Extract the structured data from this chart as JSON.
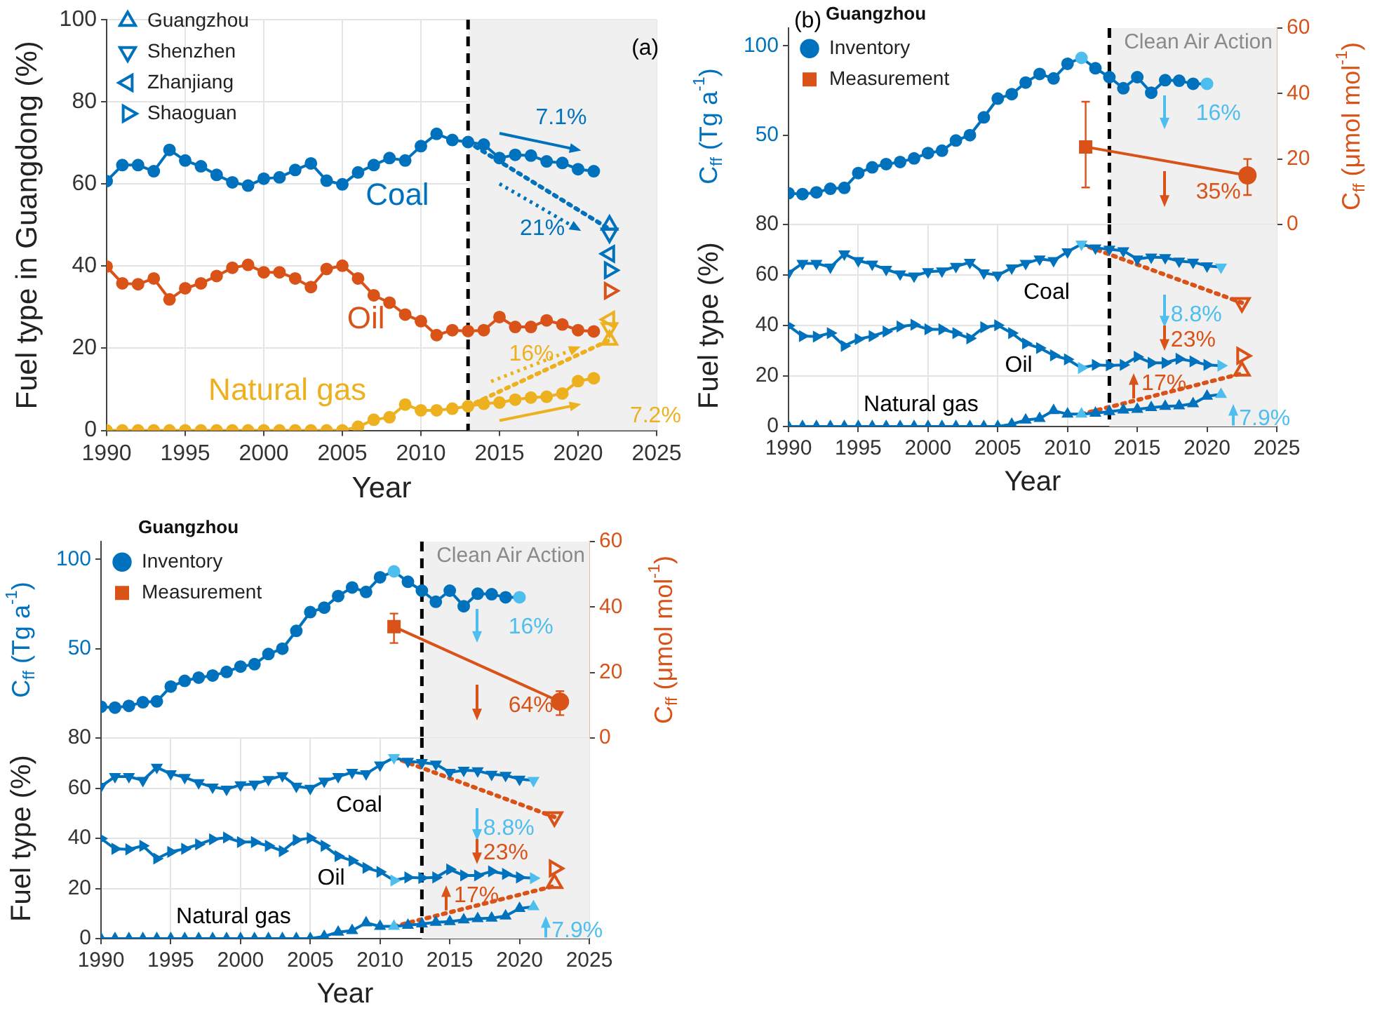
{
  "chart_data": [
    {
      "type": "line",
      "xlabel": "Year",
      "ylabel": "Fuel type in Guangdong (%)",
      "x": [
        1990,
        1991,
        1992,
        1993,
        1994,
        1995,
        1996,
        1997,
        1998,
        1999,
        2000,
        2001,
        2002,
        2003,
        2004,
        2005,
        2006,
        2007,
        2008,
        2009,
        2010,
        2011,
        2012,
        2013,
        2014,
        2015,
        2016,
        2017,
        2018,
        2019,
        2020,
        2021
      ],
      "xlim": [
        1990,
        2025
      ],
      "xticks": [
        1990,
        1995,
        2000,
        2005,
        2010,
        2015,
        2020,
        2025
      ],
      "ylim": [
        0,
        100
      ],
      "yticks": [
        0,
        20,
        40,
        60,
        80,
        100
      ],
      "grid": true,
      "legend": "top left",
      "marker": "circle",
      "series": [
        {
          "name": "Coal",
          "color": "#0072bd",
          "values": [
            60.7,
            64.6,
            64.6,
            63.1,
            68.3,
            65.7,
            64.3,
            62.2,
            60.4,
            59.6,
            61.3,
            61.6,
            63.4,
            65,
            60.8,
            59.9,
            62.8,
            64.6,
            66.3,
            65.7,
            69.2,
            72.2,
            70.7,
            70.2,
            69.6,
            66.3,
            67.1,
            66.9,
            65.5,
            65.1,
            63.6,
            63.1
          ]
        },
        {
          "name": "Oil",
          "color": "#d95319",
          "values": [
            39.9,
            35.8,
            35.6,
            37,
            31.9,
            34.6,
            35.8,
            37.6,
            39.6,
            40.3,
            38.5,
            38.5,
            37,
            34.9,
            39.3,
            40.1,
            37,
            32.9,
            31.1,
            28.2,
            26.6,
            23.2,
            24.4,
            24.2,
            24.4,
            27.6,
            25.2,
            25.2,
            26.8,
            25.8,
            24.4,
            24.1
          ]
        },
        {
          "name": "Natural gas",
          "color": "#edb120",
          "values": [
            0,
            0,
            0,
            0,
            0,
            0,
            0,
            0,
            0,
            0,
            0,
            0,
            0,
            0,
            0,
            0,
            0.9,
            2.6,
            3.2,
            6.3,
            4.9,
            4.9,
            5.3,
            5.9,
            6.5,
            6.8,
            7.5,
            8,
            8.2,
            9,
            12,
            12.7
          ]
        },
        {
          "type": "line",
          "color": "#0072bd",
          "line_style": "dotted",
          "marker": "none",
          "x": [
            2013,
            2022
          ],
          "values": [
            70.2,
            49
          ]
        },
        {
          "type": "line",
          "color": "#edb120",
          "line_style": "dotted",
          "marker": "none",
          "x": [
            2013,
            2022
          ],
          "values": [
            5.9,
            22
          ]
        },
        {
          "type": "scatter",
          "name": "Guangzhou",
          "marker": "triangle",
          "x": [
            2022,
            2022
          ],
          "values": [
            50,
            22
          ],
          "colors": [
            "#0072bd",
            "#edb120"
          ]
        },
        {
          "type": "scatter",
          "name": "Shenzhen",
          "marker": "triangle-down",
          "x": [
            2022,
            2022
          ],
          "values": [
            48,
            25
          ],
          "colors": [
            "#0072bd",
            "#edb120"
          ]
        },
        {
          "type": "scatter",
          "name": "Zhanjiang",
          "marker": "triangle-left",
          "x": [
            2022,
            2022
          ],
          "values": [
            43,
            27
          ],
          "colors": [
            "#0072bd",
            "#edb120"
          ]
        },
        {
          "type": "scatter",
          "name": "Shaoguan",
          "marker": "triangle-right",
          "x": [
            2022,
            2022
          ],
          "values": [
            39,
            34
          ],
          "colors": [
            "#0072bd",
            "#d95319"
          ]
        }
      ],
      "bands": [
        {
          "axis": "x",
          "from": 2013,
          "to": 2025,
          "color": "#f0f0f0"
        }
      ],
      "ref_lines": [
        {
          "axis": "x",
          "value": 2013,
          "color": "#000000",
          "line_style": "dashed"
        }
      ],
      "annotations": [
        "(a)",
        "7.1%",
        "21%",
        "16%",
        "7.2%"
      ]
    },
    {
      "type": "line",
      "ylabel": "C$_{ff}$ (Tg a$^{-1}$)",
      "y2label": "C$_{ff}$ (μmol mol$^{-1}$)",
      "legend_title": "Guangzhou",
      "legend": "top left",
      "tick_labels": "y",
      "xlim": [
        1990,
        2025
      ],
      "xticks": [
        1990,
        1995,
        2000,
        2005,
        2010,
        2015,
        2020,
        2025
      ],
      "ylim": [
        0,
        110
      ],
      "yticks": [
        {
          "value": 0,
          "label": null
        },
        50,
        100
      ],
      "y2lim": [
        0,
        60
      ],
      "y2ticks": [
        0,
        20,
        40,
        60
      ],
      "marker": "circle",
      "series": [
        {
          "name": "Inventory",
          "color": "#0072bd",
          "x": [
            1990,
            1991,
            1992,
            1993,
            1994,
            1995,
            1996,
            1997,
            1998,
            1999,
            2000,
            2001,
            2002,
            2003,
            2004,
            2005,
            2006,
            2007,
            2008,
            2009,
            2010,
            2011,
            2012,
            2013,
            2014,
            2015,
            2016,
            2017,
            2018,
            2019,
            2020
          ],
          "values": [
            17.5,
            17,
            18,
            20,
            20.5,
            28.8,
            32,
            33.8,
            35,
            37,
            40,
            41.3,
            47,
            50,
            60,
            70.5,
            73,
            79.5,
            84.3,
            81.8,
            90,
            93.3,
            87.5,
            82.5,
            76.3,
            82.5,
            73.8,
            80.8,
            80.5,
            78.8,
            78.8
          ],
          "colors": [
            "#0072bd",
            "#0072bd",
            "#0072bd",
            "#0072bd",
            "#0072bd",
            "#0072bd",
            "#0072bd",
            "#0072bd",
            "#0072bd",
            "#0072bd",
            "#0072bd",
            "#0072bd",
            "#0072bd",
            "#0072bd",
            "#0072bd",
            "#0072bd",
            "#0072bd",
            "#0072bd",
            "#0072bd",
            "#0072bd",
            "#0072bd",
            "#4dbeee",
            "#0072bd",
            "#0072bd",
            "#0072bd",
            "#0072bd",
            "#0072bd",
            "#0072bd",
            "#0072bd",
            "#0072bd",
            "#4dbeee"
          ]
        },
        {
          "name": "Measurement",
          "color": "#d95319",
          "axis": "y2",
          "marker": [
            "square",
            "circle"
          ],
          "x": [
            2011.3,
            2022.9
          ],
          "values": [
            23.7,
            15
          ],
          "errors": [
            [
              11.3,
              37.5
            ],
            [
              9,
              20
            ]
          ]
        }
      ],
      "bands": [
        {
          "axis": "x",
          "from": 2013,
          "to": 2025,
          "color": "#f0f0f0",
          "label": "Clean Air Action"
        }
      ],
      "ref_lines": [
        {
          "axis": "x",
          "value": 2013,
          "color": "#000000",
          "line_style": "dashed"
        }
      ],
      "annotations": [
        "(b)",
        "16%",
        "35%"
      ]
    },
    {
      "type": "line",
      "xlabel": "Year",
      "ylabel": "Fuel type (%)",
      "x": [
        1990,
        1991,
        1992,
        1993,
        1994,
        1995,
        1996,
        1997,
        1998,
        1999,
        2000,
        2001,
        2002,
        2003,
        2004,
        2005,
        2006,
        2007,
        2008,
        2009,
        2010,
        2011,
        2012,
        2013,
        2014,
        2015,
        2016,
        2017,
        2018,
        2019,
        2020,
        2021
      ],
      "xlim": [
        1990,
        2025
      ],
      "xticks": [
        1990,
        1995,
        2000,
        2005,
        2010,
        2015,
        2020,
        2025
      ],
      "ylim": [
        0,
        80
      ],
      "yticks": [
        0,
        20,
        40,
        60,
        80
      ],
      "grid": true,
      "series": [
        {
          "name": "Coal",
          "color": "#0072bd",
          "marker": "triangle-down",
          "values": [
            60.7,
            64.6,
            64.6,
            63.1,
            68.3,
            65.7,
            64.3,
            62.2,
            60.4,
            59.6,
            61.3,
            61.6,
            63.4,
            65,
            60.8,
            59.9,
            62.8,
            64.6,
            66.3,
            65.7,
            69.2,
            72.2,
            70.7,
            70.2,
            69.6,
            66.3,
            67.1,
            66.9,
            65.5,
            65.1,
            63.6,
            63.1
          ],
          "colors": [
            "#0072bd",
            "#0072bd",
            "#0072bd",
            "#0072bd",
            "#0072bd",
            "#0072bd",
            "#0072bd",
            "#0072bd",
            "#0072bd",
            "#0072bd",
            "#0072bd",
            "#0072bd",
            "#0072bd",
            "#0072bd",
            "#0072bd",
            "#0072bd",
            "#0072bd",
            "#0072bd",
            "#0072bd",
            "#0072bd",
            "#0072bd",
            "#4dbeee",
            "#0072bd",
            "#0072bd",
            "#0072bd",
            "#0072bd",
            "#0072bd",
            "#0072bd",
            "#0072bd",
            "#0072bd",
            "#0072bd",
            "#4dbeee"
          ]
        },
        {
          "name": "Oil",
          "color": "#0072bd",
          "marker": "triangle-right",
          "values": [
            39.9,
            35.8,
            35.6,
            37,
            31.9,
            34.6,
            35.8,
            37.6,
            39.6,
            40.3,
            38.5,
            38.5,
            37,
            34.9,
            39.3,
            40.1,
            37,
            32.9,
            31.1,
            28.2,
            26.6,
            23.2,
            24.4,
            24.2,
            24.4,
            27.6,
            25.2,
            25.2,
            26.8,
            25.8,
            24.4,
            24.1
          ],
          "colors": [
            "#0072bd",
            "#0072bd",
            "#0072bd",
            "#0072bd",
            "#0072bd",
            "#0072bd",
            "#0072bd",
            "#0072bd",
            "#0072bd",
            "#0072bd",
            "#0072bd",
            "#0072bd",
            "#0072bd",
            "#0072bd",
            "#0072bd",
            "#0072bd",
            "#0072bd",
            "#0072bd",
            "#0072bd",
            "#0072bd",
            "#0072bd",
            "#4dbeee",
            "#0072bd",
            "#0072bd",
            "#0072bd",
            "#0072bd",
            "#0072bd",
            "#0072bd",
            "#0072bd",
            "#0072bd",
            "#0072bd",
            "#4dbeee"
          ]
        },
        {
          "name": "Natural gas",
          "color": "#0072bd",
          "marker": "triangle",
          "values": [
            0,
            0,
            0,
            0,
            0,
            0,
            0,
            0,
            0,
            0,
            0,
            0,
            0,
            0,
            0,
            0,
            0.9,
            2.6,
            3.2,
            6.3,
            4.9,
            4.9,
            5.3,
            5.9,
            6.5,
            6.8,
            7.5,
            8,
            8.2,
            9,
            12,
            12.7
          ],
          "colors": [
            "#0072bd",
            "#0072bd",
            "#0072bd",
            "#0072bd",
            "#0072bd",
            "#0072bd",
            "#0072bd",
            "#0072bd",
            "#0072bd",
            "#0072bd",
            "#0072bd",
            "#0072bd",
            "#0072bd",
            "#0072bd",
            "#0072bd",
            "#0072bd",
            "#0072bd",
            "#0072bd",
            "#0072bd",
            "#0072bd",
            "#0072bd",
            "#4dbeee",
            "#0072bd",
            "#0072bd",
            "#0072bd",
            "#0072bd",
            "#0072bd",
            "#0072bd",
            "#0072bd",
            "#0072bd",
            "#0072bd",
            "#4dbeee"
          ]
        },
        {
          "type": "line",
          "color": "#d95319",
          "line_style": "dotted",
          "marker": "none",
          "x": [
            2011,
            2022.5
          ],
          "values": [
            72.2,
            49
          ]
        },
        {
          "type": "line",
          "color": "#d95319",
          "line_style": "dotted",
          "marker": "none",
          "x": [
            2011,
            2022.5
          ],
          "values": [
            4.9,
            21
          ]
        },
        {
          "type": "scatter",
          "color": "#d95319",
          "marker": "triangle-down",
          "x": [
            2022.5
          ],
          "values": [
            49
          ]
        },
        {
          "type": "scatter",
          "color": "#d95319",
          "marker": "triangle-right",
          "x": [
            2022.5
          ],
          "values": [
            28
          ]
        },
        {
          "type": "scatter",
          "color": "#d95319",
          "marker": "triangle",
          "x": [
            2022.5
          ],
          "values": [
            22
          ]
        }
      ],
      "bands": [
        {
          "axis": "x",
          "from": 2013,
          "to": 2025,
          "color": "#f0f0f0"
        }
      ],
      "ref_lines": [
        {
          "axis": "x",
          "value": 2013,
          "color": "#000000",
          "line_style": "dashed"
        }
      ],
      "annotations": [
        "8.8%",
        "23%",
        "17%",
        "7.9%"
      ]
    },
    {
      "type": "line",
      "ylabel": "C$_{ff}$ (Tg a$^{-1}$)",
      "y2label": "C$_{ff}$ (μmol mol$^{-1}$)",
      "legend_title": "Guangzhou",
      "legend": "top left",
      "tick_labels": "y",
      "xlim": [
        1990,
        2025
      ],
      "xticks": [
        1990,
        1995,
        2000,
        2005,
        2010,
        2015,
        2020,
        2025
      ],
      "ylim": [
        0,
        110
      ],
      "yticks": [
        {
          "value": 0,
          "label": null
        },
        50,
        100
      ],
      "y2lim": [
        0,
        60
      ],
      "y2ticks": [
        0,
        20,
        40,
        60
      ],
      "marker": "circle",
      "series": [
        {
          "name": "Inventory",
          "color": "#0072bd",
          "x": [
            1990,
            1991,
            1992,
            1993,
            1994,
            1995,
            1996,
            1997,
            1998,
            1999,
            2000,
            2001,
            2002,
            2003,
            2004,
            2005,
            2006,
            2007,
            2008,
            2009,
            2010,
            2011,
            2012,
            2013,
            2014,
            2015,
            2016,
            2017,
            2018,
            2019,
            2020
          ],
          "values": [
            17.5,
            17,
            18,
            20,
            20.5,
            28.8,
            32,
            33.8,
            35,
            37,
            40,
            41.3,
            47,
            50,
            60,
            70.5,
            73,
            79.5,
            84.3,
            81.8,
            90,
            93.3,
            87.5,
            82.5,
            76.3,
            82.5,
            73.8,
            80.8,
            80.5,
            78.8,
            78.8
          ],
          "colors": [
            "#0072bd",
            "#0072bd",
            "#0072bd",
            "#0072bd",
            "#0072bd",
            "#0072bd",
            "#0072bd",
            "#0072bd",
            "#0072bd",
            "#0072bd",
            "#0072bd",
            "#0072bd",
            "#0072bd",
            "#0072bd",
            "#0072bd",
            "#0072bd",
            "#0072bd",
            "#0072bd",
            "#0072bd",
            "#0072bd",
            "#0072bd",
            "#4dbeee",
            "#0072bd",
            "#0072bd",
            "#0072bd",
            "#0072bd",
            "#0072bd",
            "#0072bd",
            "#0072bd",
            "#0072bd",
            "#4dbeee"
          ]
        },
        {
          "name": "Measurement",
          "color": "#d95319",
          "axis": "y2",
          "marker": [
            "square",
            "circle"
          ],
          "x": [
            2011,
            2022.9
          ],
          "values": [
            34,
            11.1
          ],
          "errors": [
            [
              29,
              38
            ],
            [
              7,
              14.3
            ]
          ]
        }
      ],
      "bands": [
        {
          "axis": "x",
          "from": 2013,
          "to": 2025,
          "color": "#f0f0f0",
          "label": "Clean Air Action"
        }
      ],
      "ref_lines": [
        {
          "axis": "x",
          "value": 2013,
          "color": "#000000",
          "line_style": "dashed"
        }
      ],
      "annotations": [
        "16%",
        "64%"
      ]
    },
    {
      "type": "line",
      "xlabel": "Year",
      "ylabel": "Fuel type (%)",
      "x": [
        1990,
        1991,
        1992,
        1993,
        1994,
        1995,
        1996,
        1997,
        1998,
        1999,
        2000,
        2001,
        2002,
        2003,
        2004,
        2005,
        2006,
        2007,
        2008,
        2009,
        2010,
        2011,
        2012,
        2013,
        2014,
        2015,
        2016,
        2017,
        2018,
        2019,
        2020,
        2021
      ],
      "xlim": [
        1990,
        2025
      ],
      "xticks": [
        1990,
        1995,
        2000,
        2005,
        2010,
        2015,
        2020,
        2025
      ],
      "ylim": [
        0,
        80
      ],
      "yticks": [
        0,
        20,
        40,
        60,
        80
      ],
      "grid": true,
      "series": [
        {
          "name": "Coal",
          "color": "#0072bd",
          "marker": "triangle-down",
          "values": [
            60.7,
            64.6,
            64.6,
            63.1,
            68.3,
            65.7,
            64.3,
            62.2,
            60.4,
            59.6,
            61.3,
            61.6,
            63.4,
            65,
            60.8,
            59.9,
            62.8,
            64.6,
            66.3,
            65.7,
            69.2,
            72.2,
            70.7,
            70.2,
            69.6,
            66.3,
            67.1,
            66.9,
            65.5,
            65.1,
            63.6,
            63.1
          ],
          "colors": [
            "#0072bd",
            "#0072bd",
            "#0072bd",
            "#0072bd",
            "#0072bd",
            "#0072bd",
            "#0072bd",
            "#0072bd",
            "#0072bd",
            "#0072bd",
            "#0072bd",
            "#0072bd",
            "#0072bd",
            "#0072bd",
            "#0072bd",
            "#0072bd",
            "#0072bd",
            "#0072bd",
            "#0072bd",
            "#0072bd",
            "#0072bd",
            "#4dbeee",
            "#0072bd",
            "#0072bd",
            "#0072bd",
            "#0072bd",
            "#0072bd",
            "#0072bd",
            "#0072bd",
            "#0072bd",
            "#0072bd",
            "#4dbeee"
          ]
        },
        {
          "name": "Oil",
          "color": "#0072bd",
          "marker": "triangle-right",
          "values": [
            39.9,
            35.8,
            35.6,
            37,
            31.9,
            34.6,
            35.8,
            37.6,
            39.6,
            40.3,
            38.5,
            38.5,
            37,
            34.9,
            39.3,
            40.1,
            37,
            32.9,
            31.1,
            28.2,
            26.6,
            23.2,
            24.4,
            24.2,
            24.4,
            27.6,
            25.2,
            25.2,
            26.8,
            25.8,
            24.4,
            24.1
          ],
          "colors": [
            "#0072bd",
            "#0072bd",
            "#0072bd",
            "#0072bd",
            "#0072bd",
            "#0072bd",
            "#0072bd",
            "#0072bd",
            "#0072bd",
            "#0072bd",
            "#0072bd",
            "#0072bd",
            "#0072bd",
            "#0072bd",
            "#0072bd",
            "#0072bd",
            "#0072bd",
            "#0072bd",
            "#0072bd",
            "#0072bd",
            "#0072bd",
            "#4dbeee",
            "#0072bd",
            "#0072bd",
            "#0072bd",
            "#0072bd",
            "#0072bd",
            "#0072bd",
            "#0072bd",
            "#0072bd",
            "#0072bd",
            "#4dbeee"
          ]
        },
        {
          "name": "Natural gas",
          "color": "#0072bd",
          "marker": "triangle",
          "values": [
            0,
            0,
            0,
            0,
            0,
            0,
            0,
            0,
            0,
            0,
            0,
            0,
            0,
            0,
            0,
            0,
            0.9,
            2.6,
            3.2,
            6.3,
            4.9,
            4.9,
            5.3,
            5.9,
            6.5,
            6.8,
            7.5,
            8,
            8.2,
            9,
            12,
            12.7
          ],
          "colors": [
            "#0072bd",
            "#0072bd",
            "#0072bd",
            "#0072bd",
            "#0072bd",
            "#0072bd",
            "#0072bd",
            "#0072bd",
            "#0072bd",
            "#0072bd",
            "#0072bd",
            "#0072bd",
            "#0072bd",
            "#0072bd",
            "#0072bd",
            "#0072bd",
            "#0072bd",
            "#0072bd",
            "#0072bd",
            "#0072bd",
            "#0072bd",
            "#4dbeee",
            "#0072bd",
            "#0072bd",
            "#0072bd",
            "#0072bd",
            "#0072bd",
            "#0072bd",
            "#0072bd",
            "#0072bd",
            "#0072bd",
            "#4dbeee"
          ]
        },
        {
          "type": "line",
          "color": "#d95319",
          "line_style": "dotted",
          "marker": "none",
          "x": [
            2011,
            2022.5
          ],
          "values": [
            72.2,
            48.5
          ]
        },
        {
          "type": "line",
          "color": "#d95319",
          "line_style": "dotted",
          "marker": "none",
          "x": [
            2011,
            2022.5
          ],
          "values": [
            4.9,
            21
          ]
        },
        {
          "type": "scatter",
          "color": "#d95319",
          "marker": "triangle-down",
          "x": [
            2022.5
          ],
          "values": [
            48.5
          ]
        },
        {
          "type": "scatter",
          "color": "#d95319",
          "marker": "triangle-right",
          "x": [
            2022.5
          ],
          "values": [
            28
          ]
        },
        {
          "type": "scatter",
          "color": "#d95319",
          "marker": "triangle",
          "x": [
            2022.5
          ],
          "values": [
            22
          ]
        }
      ],
      "bands": [
        {
          "axis": "x",
          "from": 2013,
          "to": 2025,
          "color": "#f0f0f0"
        }
      ],
      "ref_lines": [
        {
          "axis": "x",
          "value": 2013,
          "color": "#000000",
          "line_style": "dashed"
        }
      ],
      "annotations": [
        "8.8%",
        "23%",
        "17%",
        "7.9%"
      ]
    }
  ]
}
